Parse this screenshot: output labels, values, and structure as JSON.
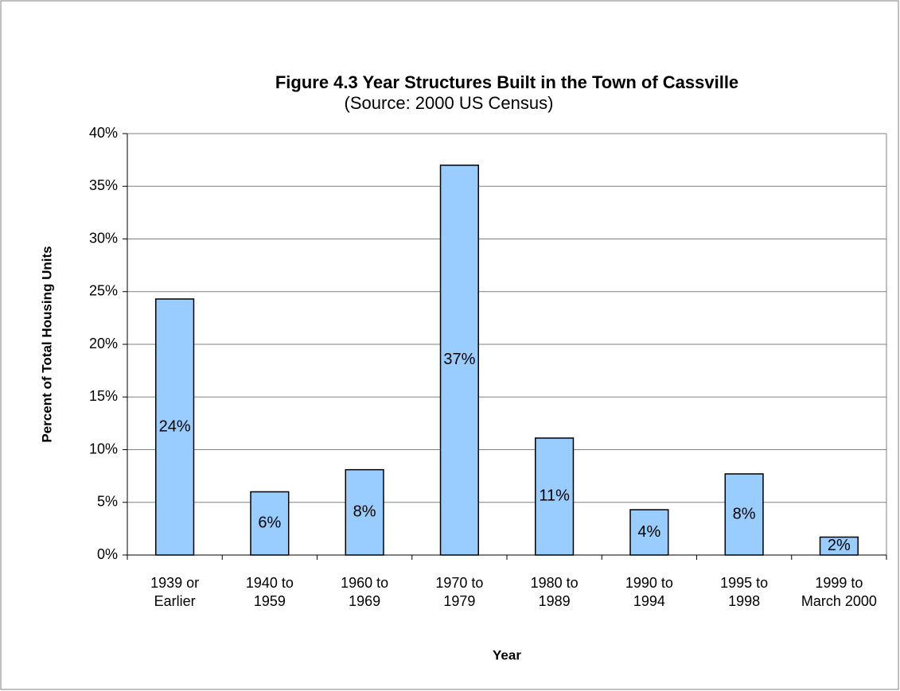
{
  "chart_data": {
    "type": "bar",
    "title": "Figure 4.3 Year Structures Built in the Town of Cassville",
    "subtitle": "(Source: 2000 US Census)",
    "x_label": "Year",
    "y_label": "Percent of Total Housing Units",
    "categories": [
      "1939 or Earlier",
      "1940 to 1959",
      "1960 to 1969",
      "1970 to 1979",
      "1980 to 1989",
      "1990 to 1994",
      "1995 to 1998",
      "1999 to March 2000"
    ],
    "values": [
      24.3,
      6.0,
      8.1,
      37.0,
      11.1,
      4.3,
      7.7,
      1.7
    ],
    "value_labels": [
      "24%",
      "6%",
      "8%",
      "37%",
      "11%",
      "4%",
      "8%",
      "2%"
    ],
    "color": "#99ccff",
    "ylim": [
      0,
      40
    ],
    "yticks": [
      {
        "value": 0,
        "label": "0%"
      },
      {
        "value": 5,
        "label": "5%"
      },
      {
        "value": 10,
        "label": "10%"
      },
      {
        "value": 15,
        "label": "15%"
      },
      {
        "value": 20,
        "label": "20%"
      },
      {
        "value": 25,
        "label": "25%"
      },
      {
        "value": 30,
        "label": "30%"
      },
      {
        "value": 35,
        "label": "35%"
      },
      {
        "value": 40,
        "label": "40%"
      }
    ],
    "grid": true
  }
}
